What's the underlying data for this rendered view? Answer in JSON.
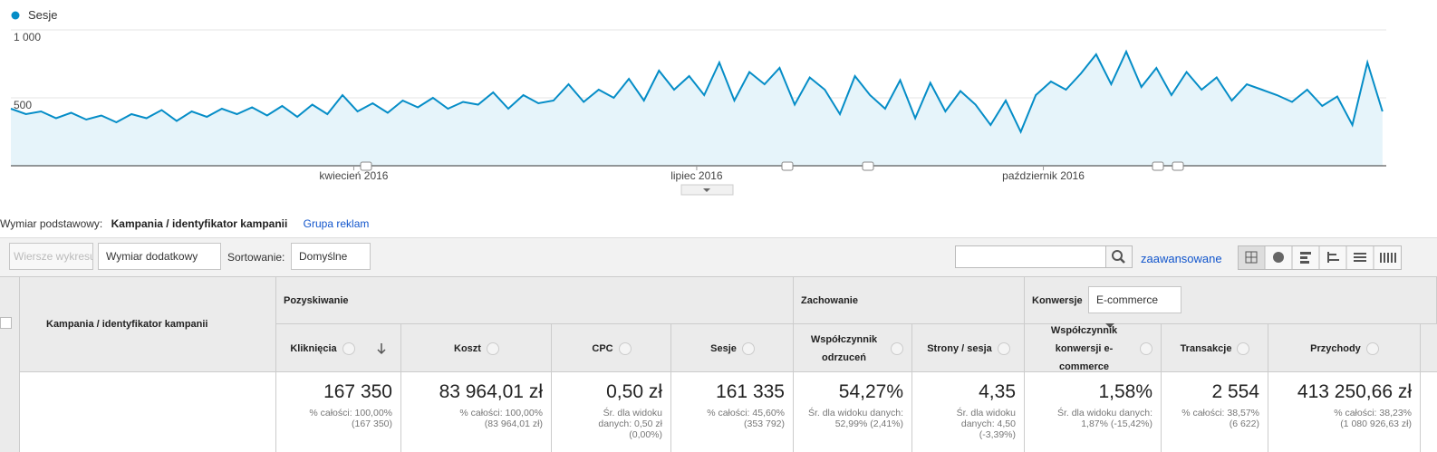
{
  "chart_data": {
    "type": "line",
    "series": [
      {
        "name": "Sesje",
        "color": "#058dc7",
        "values": [
          420,
          380,
          400,
          350,
          390,
          340,
          370,
          320,
          380,
          350,
          410,
          330,
          400,
          360,
          420,
          380,
          430,
          370,
          440,
          360,
          450,
          380,
          520,
          400,
          460,
          390,
          480,
          430,
          500,
          420,
          470,
          450,
          540,
          420,
          520,
          460,
          480,
          600,
          470,
          560,
          500,
          640,
          480,
          700,
          560,
          660,
          520,
          760,
          480,
          690,
          600,
          720,
          450,
          650,
          560,
          380,
          660,
          520,
          420,
          630,
          350,
          610,
          400,
          550,
          450,
          300,
          480,
          250,
          520,
          620,
          560,
          680,
          820,
          600,
          840,
          580,
          720,
          520,
          690,
          560,
          650,
          480,
          600,
          560,
          520,
          470,
          560,
          440,
          510,
          300,
          760,
          400
        ]
      }
    ],
    "x": [
      0,
      4,
      8,
      12,
      16,
      20,
      24,
      28,
      32,
      36,
      40,
      44,
      48,
      52,
      56,
      60,
      64,
      68,
      72,
      76,
      80,
      84,
      88,
      92,
      96,
      100,
      104,
      108,
      112,
      116,
      120,
      124,
      128,
      132,
      136,
      140,
      144,
      148,
      152,
      156,
      160,
      164,
      168,
      172,
      176,
      180,
      184,
      188,
      192,
      196,
      200,
      204,
      208,
      212,
      216,
      220,
      224,
      228,
      232,
      236,
      240,
      244,
      248,
      252,
      256,
      260,
      264,
      268,
      272,
      276,
      280,
      284,
      288,
      292,
      296,
      300,
      304,
      308,
      312,
      316,
      320,
      324,
      328,
      332,
      336,
      340,
      344,
      348,
      352,
      356,
      360,
      364
    ],
    "xlim": [
      0,
      365
    ],
    "xticks": [
      {
        "value": 91,
        "label": "kwiecień 2016"
      },
      {
        "value": 182,
        "label": "lipiec 2016"
      },
      {
        "value": 274,
        "label": "październik 2016"
      }
    ],
    "ylim": [
      0,
      1000
    ],
    "yticks": [
      500,
      {
        "value": 1000,
        "label": "1 000"
      }
    ],
    "grid": true
  },
  "dimension": {
    "label": "Wymiar podstawowy:",
    "active": "Kampania / identyfikator kampanii",
    "other": "Grupa reklam"
  },
  "toolbar": {
    "chart_rows": "Wiersze wykresu",
    "secondary": "Wymiar dodatkowy",
    "sort_label": "Sortowanie:",
    "sort": "Domyślne",
    "advanced": "zaawansowane"
  },
  "table": {
    "dimension_header": "Kampania / identyfikator kampanii",
    "groups": [
      "Pozyskiwanie",
      "Zachowanie",
      "Konwersje"
    ],
    "conversion_select": "E-commerce",
    "columns": [
      "Kliknięcia",
      "Koszt",
      "CPC",
      "Sesje",
      "Współczynnik odrzuceń",
      "Strony / sesja",
      "Współczynnik konwersji e-commerce",
      "Transakcje",
      "Przychody"
    ],
    "totals": [
      {
        "main": "167 350",
        "sub": [
          "% całości: 100,00%",
          "(167 350)"
        ]
      },
      {
        "main": "83 964,01 zł",
        "sub": [
          "% całości: 100,00%",
          "(83 964,01 zł)"
        ]
      },
      {
        "main": "0,50 zł",
        "sub": [
          "Śr. dla widoku",
          "danych: 0,50 zł",
          "(0,00%)"
        ]
      },
      {
        "main": "161 335",
        "sub": [
          "% całości: 45,60%",
          "(353 792)"
        ]
      },
      {
        "main": "54,27%",
        "sub": [
          "Śr. dla widoku danych:",
          "52,99% (2,41%)"
        ]
      },
      {
        "main": "4,35",
        "sub": [
          "Śr. dla widoku",
          "danych: 4,50",
          "(-3,39%)"
        ]
      },
      {
        "main": "1,58%",
        "sub": [
          "Śr. dla widoku danych:",
          "1,87% (-15,42%)"
        ]
      },
      {
        "main": "2 554",
        "sub": [
          "% całości: 38,57%",
          "(6 622)"
        ]
      },
      {
        "main": "413 250,66 zł",
        "sub": [
          "% całości: 38,23%",
          "(1 080 926,63 zł)"
        ]
      }
    ]
  }
}
